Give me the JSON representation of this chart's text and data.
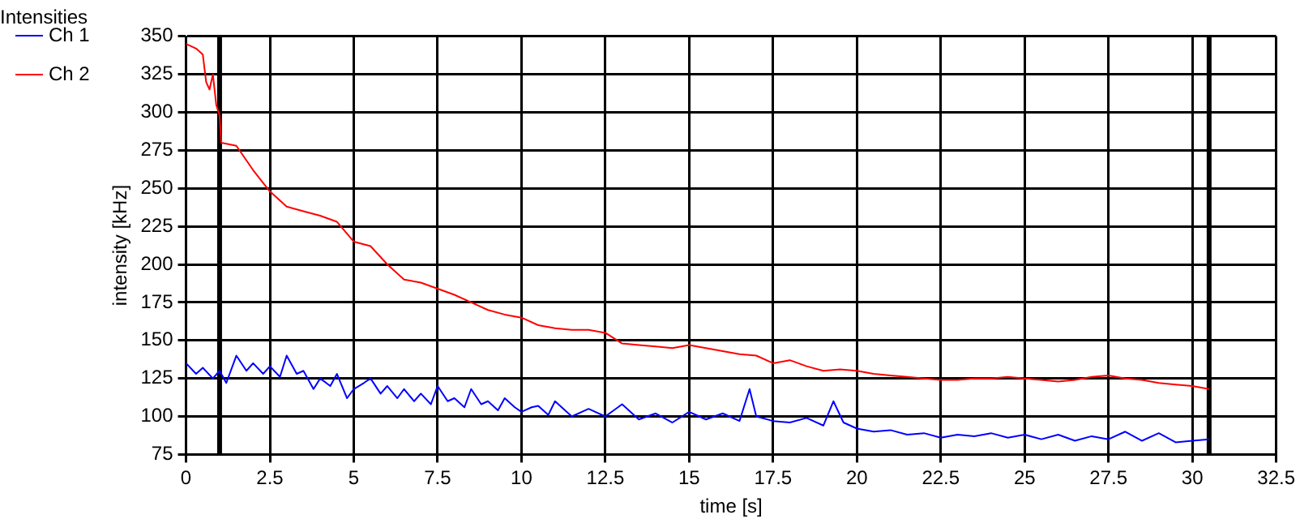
{
  "chart_data": {
    "type": "line",
    "title": "Intensities",
    "xlabel": "time [s]",
    "ylabel": "intensity [kHz]",
    "series": [
      {
        "name": "Ch 1",
        "color": "#0000ff",
        "x": [
          0,
          0.3,
          0.5,
          0.8,
          1,
          1.2,
          1.5,
          1.8,
          2,
          2.3,
          2.5,
          2.8,
          3,
          3.3,
          3.5,
          3.8,
          4,
          4.3,
          4.5,
          4.8,
          5,
          5.3,
          5.5,
          5.8,
          6,
          6.3,
          6.5,
          6.8,
          7,
          7.3,
          7.5,
          7.8,
          8,
          8.3,
          8.5,
          8.8,
          9,
          9.3,
          9.5,
          9.8,
          10,
          10.3,
          10.5,
          10.8,
          11,
          11.5,
          12,
          12.5,
          13,
          13.5,
          14,
          14.5,
          15,
          15.5,
          16,
          16.5,
          16.8,
          17,
          17.5,
          18,
          18.5,
          19,
          19.3,
          19.6,
          20,
          20.5,
          21,
          21.5,
          22,
          22.5,
          23,
          23.5,
          24,
          24.5,
          25,
          25.5,
          26,
          26.5,
          27,
          27.5,
          28,
          28.5,
          29,
          29.5,
          30,
          30.5
        ],
        "values": [
          135,
          128,
          132,
          125,
          130,
          122,
          140,
          130,
          135,
          128,
          133,
          126,
          140,
          128,
          130,
          118,
          125,
          120,
          128,
          112,
          118,
          122,
          125,
          115,
          120,
          112,
          118,
          110,
          115,
          108,
          120,
          110,
          112,
          106,
          118,
          108,
          110,
          104,
          112,
          106,
          103,
          106,
          107,
          101,
          110,
          100,
          105,
          100,
          108,
          98,
          102,
          96,
          103,
          98,
          102,
          97,
          118,
          100,
          97,
          96,
          99,
          94,
          110,
          96,
          92,
          90,
          91,
          88,
          89,
          86,
          88,
          87,
          89,
          86,
          88,
          85,
          88,
          84,
          87,
          85,
          90,
          84,
          89,
          83,
          84,
          85
        ]
      },
      {
        "name": "Ch 2",
        "color": "#ff0000",
        "x": [
          0,
          0.3,
          0.5,
          0.6,
          0.7,
          0.8,
          0.9,
          1,
          1.05,
          1.5,
          2,
          2.5,
          3,
          3.5,
          4,
          4.5,
          5,
          5.5,
          6,
          6.5,
          7,
          7.5,
          8,
          8.5,
          9,
          9.5,
          10,
          10.5,
          11,
          11.5,
          12,
          12.5,
          13,
          13.5,
          14,
          14.5,
          15,
          15.5,
          16,
          16.5,
          17,
          17.5,
          18,
          18.5,
          19,
          19.5,
          20,
          20.5,
          21,
          21.5,
          22,
          22.5,
          23,
          23.5,
          24,
          24.5,
          25,
          25.5,
          26,
          26.5,
          27,
          27.5,
          28,
          28.5,
          29,
          29.5,
          30,
          30.5
        ],
        "values": [
          345,
          342,
          338,
          320,
          315,
          325,
          305,
          298,
          280,
          278,
          262,
          248,
          238,
          235,
          232,
          228,
          215,
          212,
          200,
          190,
          188,
          184,
          180,
          175,
          170,
          167,
          165,
          160,
          158,
          157,
          157,
          155,
          148,
          147,
          146,
          145,
          147,
          145,
          143,
          141,
          140,
          135,
          137,
          133,
          130,
          131,
          130,
          128,
          127,
          126,
          125,
          124,
          124,
          125,
          125,
          126,
          125,
          124,
          123,
          124,
          126,
          127,
          125,
          124,
          122,
          121,
          120,
          118
        ]
      }
    ],
    "xlim": [
      0,
      32.5
    ],
    "xticks": [
      0,
      2.5,
      5,
      7.5,
      10,
      12.5,
      15,
      17.5,
      20,
      22.5,
      25,
      27.5,
      30,
      32.5
    ],
    "ylim": [
      75,
      350
    ],
    "yticks": [
      75,
      100,
      125,
      150,
      175,
      200,
      225,
      250,
      275,
      300,
      325,
      350
    ],
    "ref_lines": [
      {
        "axis": "x",
        "value": 1,
        "color": "#000000"
      },
      {
        "axis": "x",
        "value": 30.5,
        "color": "#000000"
      }
    ],
    "grid": true,
    "legend": "top left",
    "marker": "none",
    "line_style": "solid"
  }
}
